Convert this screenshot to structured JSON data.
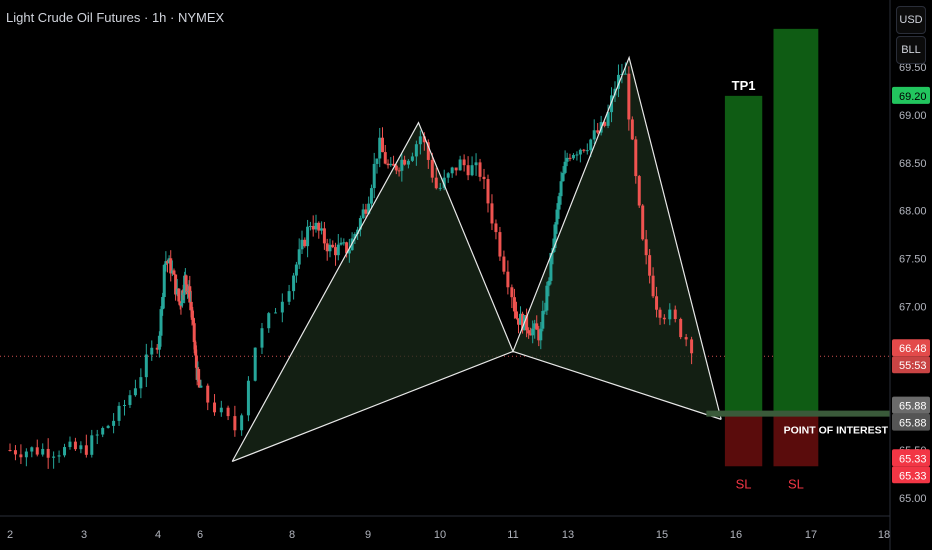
{
  "header": {
    "title": "Light Crude Oil Futures · 1h · NYMEX",
    "currency_button": "USD",
    "unit_button": "BLL"
  },
  "colors": {
    "background": "#000000",
    "up_candle": "#26a69a",
    "down_candle": "#ef5350",
    "pattern_fill": "#1a2a1a",
    "pattern_line": "#e8e8e8",
    "tp_zone": "#0f5c14",
    "sl_zone": "#5a0c0c",
    "poi_line": "#3a5a3a",
    "current_price_line": "#d05050",
    "tp_price_label": "#22c55e",
    "current_price_label": "#e34a4a",
    "poi_price_label": "#6b6b6b",
    "sl_price_label": "#f23645",
    "axis_text": "#b2b5be",
    "sl_text": "#f23645"
  },
  "chart_data": {
    "type": "candlestick",
    "symbol": "Light Crude Oil Futures",
    "interval": "1h",
    "exchange": "NYMEX",
    "x_ticks": [
      "2",
      "3",
      "4",
      "6",
      "8",
      "9",
      "10",
      "11",
      "13",
      "15",
      "16",
      "17",
      "18"
    ],
    "y_ticks": [
      "69.00",
      "68.50",
      "68.00",
      "67.50",
      "67.00",
      "66.00",
      "65.50",
      "65.00"
    ],
    "y_partial_top": "69.50",
    "ylim": [
      64.9,
      69.9
    ],
    "price_path": [
      [
        0.0,
        65.5
      ],
      [
        1.0,
        65.5
      ],
      [
        1.5,
        65.9
      ],
      [
        2.1,
        66.8
      ],
      [
        2.3,
        67.5
      ],
      [
        2.6,
        67.4
      ],
      [
        3.0,
        67.0
      ],
      [
        3.5,
        67.3
      ],
      [
        4.0,
        67.1
      ],
      [
        4.3,
        66.8
      ],
      [
        4.6,
        66.4
      ],
      [
        5.0,
        66.1
      ],
      [
        5.4,
        65.7
      ],
      [
        5.6,
        66.6
      ],
      [
        6.0,
        67.3
      ],
      [
        6.5,
        67.9
      ],
      [
        7.0,
        67.6
      ],
      [
        7.5,
        67.6
      ],
      [
        8.0,
        68.1
      ],
      [
        8.3,
        68.7
      ],
      [
        8.6,
        68.4
      ],
      [
        9.1,
        68.6
      ],
      [
        9.3,
        68.8
      ],
      [
        9.6,
        68.2
      ],
      [
        10.0,
        68.5
      ],
      [
        10.4,
        68.4
      ],
      [
        10.8,
        67.5
      ],
      [
        11.1,
        66.9
      ],
      [
        11.5,
        66.8
      ],
      [
        12.0,
        66.7
      ],
      [
        12.3,
        67.3
      ],
      [
        12.7,
        68.2
      ],
      [
        13.0,
        68.6
      ],
      [
        13.4,
        68.7
      ],
      [
        13.8,
        68.9
      ],
      [
        14.0,
        69.3
      ],
      [
        14.2,
        69.5
      ],
      [
        14.4,
        68.5
      ],
      [
        14.6,
        67.6
      ],
      [
        14.9,
        67.0
      ],
      [
        15.1,
        66.9
      ],
      [
        15.4,
        66.6
      ]
    ],
    "harmonic_pattern": {
      "points": [
        {
          "x": 5.35,
          "y": 65.38
        },
        {
          "x": 9.25,
          "y": 68.92
        },
        {
          "x": 11.0,
          "y": 66.53
        },
        {
          "x": 14.3,
          "y": 69.6
        },
        {
          "x": 15.8,
          "y": 65.82
        }
      ]
    },
    "trade_setups": [
      {
        "target_label": "TP1",
        "stop_label": "SL",
        "x_range": [
          15.85,
          16.35
        ],
        "entry": 65.88,
        "take_profit": 69.2,
        "stop_loss": 65.33
      },
      {
        "target_label": "",
        "stop_label": "SL",
        "x_range": [
          16.5,
          17.1
        ],
        "entry": 65.88,
        "take_profit": 69.9,
        "stop_loss": 65.33
      }
    ],
    "point_of_interest": {
      "label": "POINT OF INTEREST",
      "price": 65.88
    },
    "current_price": 66.48,
    "price_labels": [
      {
        "text": "69.20",
        "price": 69.2,
        "kind": "tp"
      },
      {
        "text": "66.48",
        "price": 66.48,
        "kind": "current"
      },
      {
        "text": "55:53",
        "price": 66.48,
        "kind": "countdown"
      },
      {
        "text": "65.88",
        "price": 65.88,
        "kind": "poi"
      },
      {
        "text": "65.88",
        "price": 65.88,
        "kind": "poi2"
      },
      {
        "text": "65.33",
        "price": 65.33,
        "kind": "sl"
      },
      {
        "text": "65.33",
        "price": 65.33,
        "kind": "sl2"
      }
    ]
  }
}
